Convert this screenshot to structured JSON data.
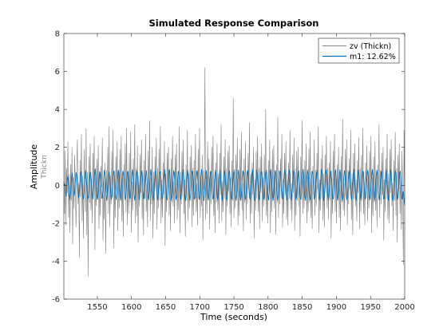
{
  "chart_data": {
    "type": "line",
    "title": "Simulated Response Comparison",
    "xlabel": "Time (seconds)",
    "ylabel": "Amplitude",
    "channel_label": "Thickn",
    "xlim": [
      1501,
      2000
    ],
    "ylim": [
      -6,
      8
    ],
    "xticks": [
      1550,
      1600,
      1650,
      1700,
      1750,
      1800,
      1850,
      1900,
      1950,
      2000
    ],
    "yticks": [
      -6,
      -4,
      -2,
      0,
      2,
      4,
      6,
      8
    ],
    "grid": false,
    "legend_position": "top-right",
    "x": {
      "start": 1501,
      "end": 2000,
      "step": 1
    },
    "series": [
      {
        "name": "zv (Thickn)",
        "color": "#808080",
        "values": [
          0.2,
          -1.5,
          1.8,
          -2.1,
          0.9,
          -0.4,
          2.3,
          -1.7,
          0.6,
          -2.5,
          1.1,
          -0.8,
          2.0,
          -3.1,
          0.4,
          -1.2,
          1.6,
          -0.3,
          -2.2,
          0.8,
          2.4,
          -1.0,
          0.1,
          -3.8,
          1.3,
          -0.6,
          2.7,
          -1.9,
          0.5,
          -2.8,
          1.9,
          -0.2,
          -1.4,
          3.0,
          -2.6,
          0.7,
          -4.8,
          1.5,
          -0.9,
          2.2,
          -1.3,
          0.3,
          -2.0,
          1.7,
          -0.5,
          2.6,
          -3.4,
          0.9,
          -1.1,
          1.4,
          -0.7,
          2.1,
          -2.3,
          0.6,
          -1.6,
          1.0,
          -0.1,
          2.5,
          -2.9,
          0.2,
          -1.8,
          1.2,
          -3.6,
          0.8,
          -0.4,
          2.0,
          -1.5,
          3.1,
          -2.2,
          0.5,
          -1.0,
          1.8,
          -0.6,
          2.9,
          -3.3,
          0.3,
          -1.7,
          1.5,
          -0.2,
          2.3,
          -2.4,
          0.7,
          -1.2,
          1.9,
          -0.8,
          2.6,
          -1.9,
          0.4,
          -2.7,
          1.1,
          -0.3,
          2.2,
          -1.4,
          3.0,
          -2.1,
          0.6,
          -1.5,
          1.7,
          -0.9,
          2.8,
          -2.5,
          0.2,
          -1.3,
          1.4,
          -0.5,
          3.2,
          -2.0,
          0.9,
          -1.6,
          2.1,
          -3.0,
          0.5,
          -1.1,
          1.6,
          -0.4,
          2.4,
          -1.8,
          0.8,
          -2.6,
          1.3,
          -0.7,
          2.7,
          -1.4,
          0.1,
          -2.2,
          1.8,
          -0.6,
          3.4,
          -1.9,
          0.4,
          -1.0,
          2.0,
          -2.8,
          0.7,
          -1.5,
          1.5,
          -0.3,
          2.5,
          -2.3,
          0.9,
          -1.2,
          1.9,
          -0.8,
          3.1,
          -2.0,
          0.3,
          -1.7,
          1.2,
          -0.5,
          2.3,
          -3.2,
          0.6,
          -1.4,
          1.7,
          -0.2,
          2.0,
          -1.6,
          0.8,
          -2.4,
          1.4,
          -0.9,
          2.6,
          -1.1,
          0.2,
          -2.0,
          1.6,
          -0.4,
          2.2,
          -1.8,
          0.5,
          -1.3,
          3.1,
          -2.5,
          0.7,
          -1.0,
          1.8,
          -0.6,
          2.4,
          -1.5,
          0.3,
          -2.7,
          1.1,
          -0.8,
          2.9,
          -1.9,
          0.6,
          -1.2,
          1.5,
          -0.3,
          2.1,
          -2.2,
          0.9,
          -1.6,
          1.3,
          -0.5,
          2.7,
          -1.4,
          0.1,
          -2.1,
          1.9,
          -0.7,
          3.0,
          -1.7,
          0.4,
          -1.1,
          1.6,
          -2.9,
          0.8,
          -0.2,
          6.2,
          -1.8,
          0.5,
          -1.5,
          2.3,
          -0.6,
          1.4,
          -2.3,
          0.7,
          -1.0,
          2.0,
          -0.4,
          2.6,
          -1.6,
          0.3,
          -2.5,
          1.2,
          -0.9,
          2.2,
          -1.3,
          0.6,
          -2.0,
          1.7,
          -0.5,
          3.2,
          -1.9,
          0.2,
          -1.4,
          1.5,
          -0.7,
          2.4,
          -2.6,
          0.9,
          -1.1,
          1.8,
          -0.3,
          2.1,
          -1.5,
          0.4,
          -2.2,
          1.3,
          -0.8,
          4.6,
          -1.7,
          0.7,
          -1.2,
          1.6,
          -0.4,
          2.5,
          -2.1,
          0.5,
          -1.6,
          1.9,
          -0.6,
          2.8,
          -1.3,
          0.1,
          -2.4,
          1.4,
          -0.9,
          2.3,
          -1.8,
          0.8,
          -1.0,
          1.7,
          -0.2,
          3.3,
          -2.0,
          0.6,
          -1.5,
          1.2,
          -0.5,
          2.0,
          -2.8,
          0.3,
          -1.3,
          1.8,
          -0.7,
          2.6,
          -1.4,
          0.9,
          -2.3,
          1.5,
          -0.4,
          2.2,
          -1.9,
          0.4,
          -1.1,
          1.6,
          -0.8,
          4.0,
          -1.6,
          0.2,
          -2.0,
          1.3,
          -0.3,
          2.4,
          -2.5,
          0.7,
          -1.4,
          1.9,
          -0.6,
          2.1,
          -1.2,
          0.5,
          -2.6,
          1.1,
          -0.9,
          3.6,
          -1.7,
          0.8,
          -1.0,
          1.4,
          -0.2,
          2.7,
          -2.2,
          0.3,
          -1.5,
          1.7,
          -0.5,
          2.3,
          -1.8,
          0.6,
          -2.1,
          1.2,
          -0.7,
          2.9,
          -1.3,
          0.1,
          -1.9,
          1.6,
          -0.4,
          2.5,
          -2.4,
          0.9,
          -1.6,
          1.8,
          -0.8,
          2.0,
          -1.1,
          0.4,
          -2.7,
          1.5,
          -0.3,
          3.4,
          -1.5,
          0.7,
          -1.2,
          1.3,
          -0.6,
          2.2,
          -2.0,
          0.5,
          -1.4,
          1.9,
          -0.9,
          2.8,
          -1.7,
          0.2,
          -2.3,
          1.0,
          -0.5,
          2.4,
          -1.6,
          0.8,
          -1.1,
          1.7,
          -0.2,
          3.1,
          -2.5,
          0.3,
          -1.3,
          1.4,
          -0.7,
          2.1,
          -1.9,
          0.6,
          -2.2,
          1.6,
          -0.4,
          2.6,
          -1.2,
          0.9,
          -1.8,
          1.2,
          -0.8,
          2.3,
          -2.8,
          0.4,
          -1.5,
          1.8,
          -0.3,
          2.7,
          -1.4,
          0.7,
          -2.0,
          1.1,
          -0.6,
          2.0,
          -1.7,
          0.5,
          -2.4,
          1.5,
          -0.9,
          3.5,
          -1.3,
          0.1,
          -1.6,
          1.9,
          -0.5,
          2.4,
          -2.1,
          0.8,
          -1.0,
          1.4,
          -0.2,
          2.9,
          -1.8,
          0.6,
          -2.6,
          1.7,
          -0.7,
          2.2,
          -1.1,
          0.3,
          -1.9,
          1.3,
          -0.4,
          2.5,
          -2.3,
          0.9,
          -1.4,
          1.6,
          -0.8,
          3.0,
          -1.5,
          0.2,
          -2.1,
          1.2,
          -0.3,
          2.1,
          -1.9,
          0.7,
          -1.2,
          1.8,
          -0.6,
          2.6,
          -2.5,
          0.4,
          -1.6,
          1.5,
          -0.9,
          2.3,
          -1.3,
          0.5,
          -2.2,
          1.1,
          -0.2,
          3.2,
          -1.7,
          0.8,
          -1.0,
          1.7,
          -0.5,
          2.0,
          -2.9,
          0.3,
          -1.4,
          1.4,
          -0.7,
          2.7,
          -1.8,
          0.6,
          -2.0,
          1.9,
          -0.4,
          2.4,
          -1.1,
          0.1,
          -2.4,
          1.3,
          -0.8,
          2.8,
          -1.6,
          0.9,
          -3.0,
          1.6,
          -0.3,
          2.2,
          -1.5,
          0.4,
          -2.3,
          1.8,
          -0.6,
          -4.2,
          2.9,
          -0.9
        ]
      },
      {
        "name": "m1: 12.62%",
        "color": "#0072bd",
        "values": [
          0.05,
          0.02,
          0.08,
          -0.35,
          -0.6,
          -0.25,
          0.22,
          0.46,
          0.31,
          -0.18,
          -0.52,
          -0.74,
          -0.43,
          0.08,
          0.47,
          0.65,
          0.38,
          -0.12,
          -0.55,
          -0.48,
          -0.07,
          0.34,
          0.67,
          0.59,
          0.17,
          -0.34,
          -0.67,
          -0.58,
          -0.14,
          0.29,
          0.64,
          0.72,
          0.4,
          -0.08,
          -0.52,
          -0.73,
          -0.46,
          0.02,
          0.45,
          0.79,
          0.57,
          0.08,
          -0.4,
          -0.71,
          -0.64,
          -0.21,
          0.25,
          0.63,
          0.69,
          0.32,
          -0.17,
          -0.6,
          -0.72,
          -0.38,
          0.09,
          0.53,
          0.84,
          0.54,
          -0.01,
          -0.48,
          -0.76,
          -0.57,
          -0.1,
          0.38,
          0.73,
          0.63,
          0.2,
          -0.31,
          -0.68,
          -0.67,
          -0.27,
          0.2,
          0.61,
          0.8,
          0.44,
          -0.05,
          -0.55,
          -0.8,
          -0.48,
          0.03,
          0.49,
          0.71,
          0.53,
          0.05,
          -0.44,
          -0.75,
          -0.61,
          -0.14,
          0.35,
          0.7,
          0.75,
          0.34,
          -0.18,
          -0.63,
          -0.76,
          -0.37,
          0.12,
          0.58,
          0.8,
          0.46,
          -0.07,
          -0.54,
          -0.78,
          -0.5,
          0.01,
          0.47,
          0.75,
          0.6,
          0.1,
          -0.42,
          -0.75,
          -0.64,
          -0.18,
          0.33,
          0.7,
          0.73,
          0.3,
          -0.23,
          -0.65,
          -0.71,
          -0.32,
          0.18,
          0.61,
          0.82,
          0.46,
          -0.08,
          -0.56,
          -0.79,
          -0.47,
          0.04,
          0.52,
          0.76,
          0.55,
          0.03,
          -0.47,
          -0.77,
          -0.58,
          -0.11,
          0.39,
          0.76,
          0.66,
          0.19,
          -0.35,
          -0.71,
          -0.68,
          -0.24,
          0.27,
          0.64,
          0.77,
          0.35,
          -0.18,
          -0.62,
          -0.76,
          -0.38,
          0.12,
          0.59,
          0.83,
          0.49,
          -0.05,
          -0.55,
          -0.8,
          -0.51,
          0.02,
          0.49,
          0.76,
          0.58,
          0.07,
          -0.44,
          -0.76,
          -0.62,
          -0.15,
          0.36,
          0.72,
          0.71,
          0.27,
          -0.27,
          -0.68,
          -0.72,
          -0.3,
          0.22,
          0.62,
          0.83,
          0.42,
          -0.12,
          -0.61,
          -0.79,
          -0.43,
          0.09,
          0.55,
          0.83,
          0.52,
          0.0,
          -0.51,
          -0.79,
          -0.55,
          -0.05,
          0.45,
          0.77,
          0.64,
          0.13,
          -0.4,
          -0.76,
          -0.64,
          -0.19,
          0.32,
          0.71,
          0.74,
          0.3,
          -0.24,
          -0.66,
          -0.74,
          -0.33,
          0.18,
          0.61,
          0.84,
          0.45,
          -0.09,
          -0.58,
          -0.8,
          -0.46,
          0.06,
          0.53,
          0.79,
          0.55,
          0.03,
          -0.48,
          -0.79,
          -0.58,
          -0.1,
          0.41,
          0.75,
          0.68,
          0.18,
          -0.37,
          -0.74,
          -0.67,
          -0.23,
          0.28,
          0.67,
          0.77,
          0.34,
          -0.2,
          -0.64,
          -0.76,
          -0.37,
          0.13,
          0.58,
          0.84,
          0.47,
          -0.07,
          -0.56,
          -0.81,
          -0.48,
          0.03,
          0.51,
          0.78,
          0.57,
          0.04,
          -0.47,
          -0.78,
          -0.6,
          -0.12,
          0.38,
          0.73,
          0.71,
          0.23,
          -0.32,
          -0.72,
          -0.7,
          -0.27,
          0.24,
          0.64,
          0.81,
          0.39,
          -0.15,
          -0.62,
          -0.79,
          -0.41,
          0.09,
          0.57,
          0.83,
          0.51,
          -0.03,
          -0.53,
          -0.8,
          -0.53,
          -0.02,
          0.47,
          0.77,
          0.62,
          0.1,
          -0.43,
          -0.77,
          -0.63,
          -0.17,
          0.34,
          0.7,
          0.76,
          0.3,
          -0.25,
          -0.68,
          -0.74,
          -0.33,
          0.18,
          0.62,
          0.83,
          0.44,
          -0.1,
          -0.59,
          -0.8,
          -0.45,
          0.06,
          0.53,
          0.8,
          0.55,
          0.01,
          -0.5,
          -0.79,
          -0.57,
          -0.08,
          0.42,
          0.76,
          0.67,
          0.16,
          -0.39,
          -0.75,
          -0.65,
          -0.21,
          0.3,
          0.68,
          0.77,
          0.34,
          -0.21,
          -0.66,
          -0.76,
          -0.36,
          0.14,
          0.6,
          0.84,
          0.47,
          -0.08,
          -0.57,
          -0.81,
          -0.49,
          0.03,
          0.51,
          0.8,
          0.58,
          0.05,
          -0.47,
          -0.78,
          -0.6,
          -0.13,
          0.39,
          0.73,
          0.71,
          0.23,
          -0.33,
          -0.73,
          -0.7,
          -0.26,
          0.26,
          0.65,
          0.8,
          0.37,
          -0.17,
          -0.63,
          -0.78,
          -0.4,
          0.1,
          0.57,
          0.83,
          0.5,
          -0.04,
          -0.54,
          -0.8,
          -0.52,
          0.0,
          0.48,
          0.78,
          0.61,
          0.09,
          -0.44,
          -0.77,
          -0.62,
          -0.15,
          0.35,
          0.71,
          0.75,
          0.29,
          -0.27,
          -0.69,
          -0.73,
          -0.31,
          0.2,
          0.63,
          0.82,
          0.43,
          -0.12,
          -0.6,
          -0.8,
          -0.44,
          0.07,
          0.54,
          0.81,
          0.55,
          0.01,
          -0.51,
          -0.79,
          -0.56,
          -0.07,
          0.43,
          0.76,
          0.66,
          0.15,
          -0.4,
          -0.75,
          -0.65,
          -0.2,
          0.31,
          0.69,
          0.77,
          0.33,
          -0.22,
          -0.66,
          -0.75,
          -0.35,
          0.15,
          0.6,
          0.84,
          0.46,
          -0.09,
          -0.58,
          -0.8,
          -0.48,
          0.04,
          0.52,
          0.8,
          0.57,
          0.04,
          -0.47,
          -0.78,
          -0.59,
          -0.11,
          0.4,
          0.74,
          0.7,
          0.21,
          -0.34,
          -0.73,
          -0.69,
          -0.25,
          0.27,
          0.66,
          0.79,
          0.36,
          -0.18,
          -0.64,
          -0.77,
          -0.39,
          0.11,
          0.58,
          0.83,
          0.49,
          -0.05,
          -0.55,
          -0.8,
          -0.51,
          0.01,
          0.49,
          0.79,
          0.6,
          0.08,
          -0.45,
          -0.77,
          -0.61,
          -0.14,
          0.36,
          0.72,
          0.74,
          0.27,
          -0.29,
          -0.7,
          -0.72,
          -0.3,
          0.22,
          0.63,
          0.82,
          0.42,
          -0.13,
          -0.61,
          -0.79,
          -0.43,
          0.08,
          0.55,
          0.82,
          0.53,
          0.0,
          -0.52,
          -0.79,
          -0.55,
          -0.06,
          0.44,
          0.77,
          0.65,
          0.13,
          -0.41,
          -0.76,
          -0.64,
          -0.19,
          0.32,
          0.69,
          0.76,
          0.32,
          -0.23,
          -0.67,
          -0.75,
          -0.34,
          0.16,
          0.61,
          0.84,
          0.45,
          -0.1,
          -0.59,
          -0.8,
          -0.47,
          0.05,
          0.53,
          0.8,
          0.56,
          0.03,
          -0.48,
          -0.79,
          -0.58,
          -0.1,
          0.41,
          0.75,
          0.69,
          0.2,
          -0.35,
          -0.74,
          -0.68,
          -0.24,
          0.28,
          0.67,
          0.78,
          0.35,
          -0.19,
          -0.65,
          -0.76,
          -0.38,
          0.12,
          0.59,
          0.83,
          0.48,
          -0.06,
          -0.56,
          -0.8,
          -0.5,
          0.02,
          0.5,
          0.79,
          0.59,
          0.07,
          -0.46,
          -0.77,
          -0.6,
          -0.13,
          0.37,
          0.72,
          0.73,
          0.26,
          -0.3,
          -0.71,
          -0.72,
          -0.29,
          0.23,
          0.64,
          0.81,
          0.41,
          -0.14,
          -0.61,
          -0.79,
          -0.42,
          0.09,
          0.56,
          0.82,
          0.52,
          -0.01,
          -0.52,
          -0.8,
          -0.54,
          -0.05,
          0.45,
          0.77,
          0.64,
          0.12,
          -0.42,
          -0.76,
          -0.63,
          -0.18,
          0.33,
          0.7,
          0.75,
          0.31,
          -0.24,
          -0.67,
          -0.74,
          -0.34,
          -0.52,
          -0.85,
          -1.05
        ]
      }
    ]
  }
}
